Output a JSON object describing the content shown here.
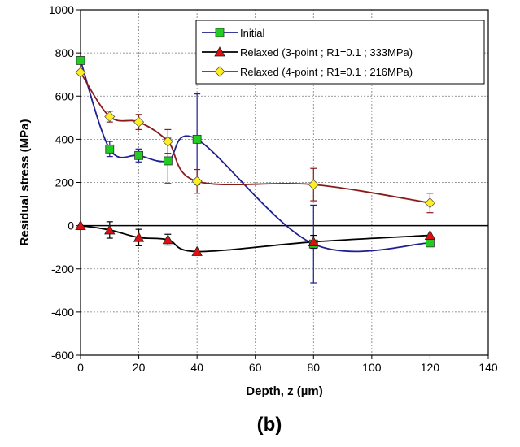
{
  "chart_data": {
    "type": "line",
    "xlabel": "Depth, z (µm)",
    "ylabel": "Residual stress (MPa)",
    "caption": "(b)",
    "xlim": [
      0,
      140
    ],
    "ylim": [
      -600,
      1000
    ],
    "x_ticks": [
      0,
      20,
      40,
      60,
      80,
      100,
      120,
      140
    ],
    "y_ticks": [
      -600,
      -400,
      -200,
      0,
      200,
      400,
      600,
      800,
      1000
    ],
    "x_tick_labels": [
      "0",
      "20",
      "40",
      "60",
      "80",
      "100",
      "120",
      "140"
    ],
    "y_tick_labels": [
      "-600",
      "-400",
      "-200",
      "0",
      "200",
      "400",
      "600",
      "800",
      "1000"
    ],
    "grid": true,
    "legend_position": "top-right",
    "series": [
      {
        "name": "Initial",
        "color": "#1f1f8f",
        "marker": "square",
        "marker_color": "#22cc22",
        "x": [
          0,
          10,
          20,
          30,
          40,
          80,
          120
        ],
        "y": [
          765,
          355,
          325,
          300,
          400,
          -85,
          -80
        ],
        "err": [
          0,
          35,
          30,
          105,
          210,
          180,
          0
        ]
      },
      {
        "name": "Relaxed (3-point ; R1=0.1 ; 333MPa)",
        "color": "#000000",
        "marker": "triangle",
        "marker_color": "#dd1111",
        "x": [
          0,
          10,
          20,
          30,
          40,
          80,
          120
        ],
        "y": [
          0,
          -20,
          -55,
          -65,
          -120,
          -75,
          -45
        ],
        "err": [
          0,
          38,
          38,
          25,
          0,
          30,
          0
        ]
      },
      {
        "name": "Relaxed (4-point ; R1=0.1 ; 216MPa)",
        "color": "#8b1a1a",
        "marker": "diamond",
        "marker_color": "#ffee22",
        "x": [
          0,
          10,
          20,
          30,
          40,
          80,
          120
        ],
        "y": [
          710,
          505,
          480,
          390,
          205,
          190,
          105
        ],
        "err": [
          0,
          25,
          35,
          55,
          55,
          75,
          45
        ]
      }
    ]
  }
}
